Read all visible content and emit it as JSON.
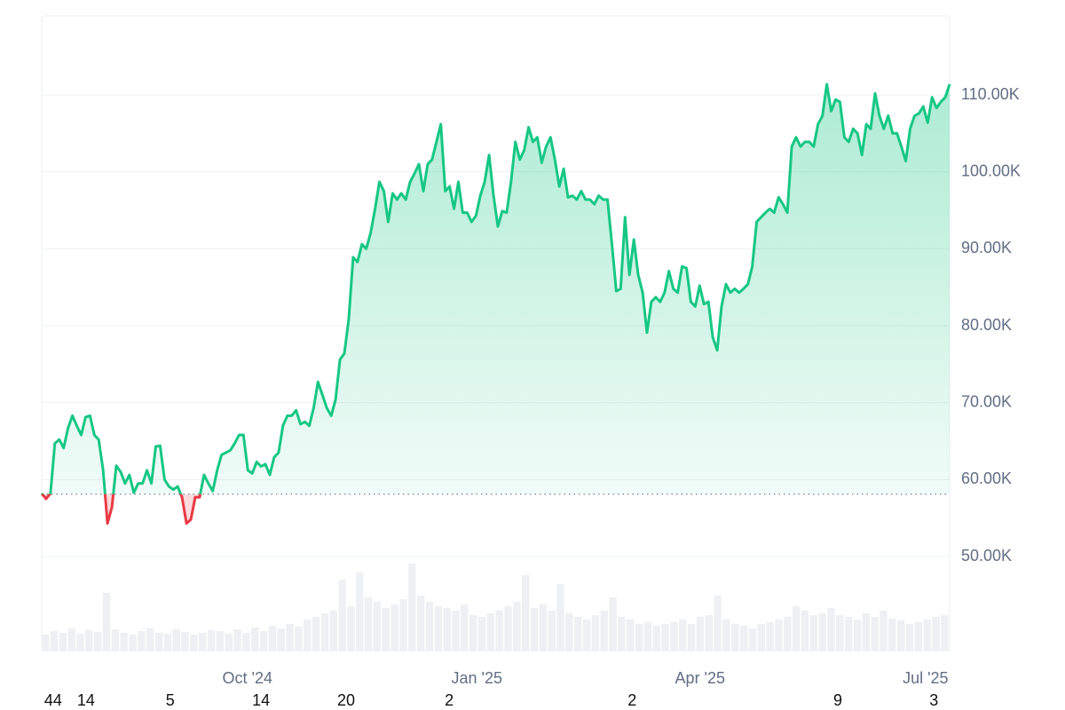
{
  "chart_data": {
    "type": "line",
    "series": [
      {
        "name": "price",
        "color": "#16c784",
        "below_color": "#ea3943",
        "values": [
          58200,
          57500,
          58200,
          64700,
          65200,
          64100,
          66700,
          68300,
          67000,
          65800,
          68100,
          68300,
          65800,
          65200,
          61200,
          54300,
          56400,
          61800,
          61000,
          59500,
          60600,
          58300,
          59500,
          59500,
          61200,
          59500,
          64300,
          64400,
          60000,
          59100,
          58700,
          59100,
          57700,
          54300,
          54800,
          57700,
          57700,
          60600,
          59500,
          58500,
          61200,
          63200,
          63500,
          63800,
          64700,
          65800,
          65800,
          61200,
          60800,
          62300,
          61700,
          62000,
          60600,
          62900,
          63500,
          67000,
          68300,
          68300,
          69000,
          67200,
          67500,
          67000,
          69300,
          72700,
          71000,
          69300,
          68300,
          70400,
          75600,
          76400,
          80800,
          88900,
          88300,
          90600,
          90000,
          92100,
          95200,
          98700,
          97500,
          93500,
          97200,
          96400,
          97200,
          96400,
          98700,
          99800,
          101000,
          97500,
          101000,
          101600,
          103900,
          106200,
          97500,
          98100,
          95200,
          98700,
          94700,
          94700,
          93500,
          94300,
          96900,
          98700,
          102200,
          97000,
          92900,
          94900,
          94700,
          98700,
          103900,
          101600,
          102800,
          105800,
          103900,
          104500,
          101200,
          103300,
          104500,
          101600,
          98100,
          100400,
          96700,
          96900,
          96400,
          97500,
          96400,
          96400,
          95800,
          96900,
          96400,
          96400,
          90600,
          84500,
          84800,
          94100,
          86600,
          91200,
          86600,
          84300,
          79100,
          83100,
          83700,
          83100,
          84300,
          87100,
          84800,
          84300,
          87700,
          87500,
          83100,
          82500,
          85200,
          82800,
          83100,
          78500,
          76800,
          82500,
          85400,
          84300,
          84800,
          84300,
          84800,
          85400,
          87700,
          93500,
          94100,
          94700,
          95200,
          94700,
          96700,
          95800,
          94700,
          103300,
          104500,
          103300,
          103900,
          103900,
          103300,
          106200,
          107300,
          111400,
          107900,
          109400,
          109100,
          104500,
          103900,
          105600,
          105000,
          102200,
          106200,
          105600,
          110200,
          107300,
          105600,
          107300,
          105000,
          105000,
          103300,
          101400,
          105600,
          107300,
          107600,
          108500,
          106400,
          109700,
          108300,
          109100,
          109700,
          111400
        ]
      }
    ],
    "baseline": 58100,
    "volume": {
      "color": "#eef0f3",
      "values": [
        18,
        22,
        20,
        25,
        19,
        23,
        21,
        65,
        24,
        20,
        18,
        22,
        25,
        20,
        19,
        24,
        21,
        18,
        20,
        23,
        22,
        19,
        24,
        20,
        26,
        22,
        28,
        25,
        30,
        27,
        35,
        38,
        42,
        45,
        80,
        50,
        88,
        60,
        55,
        48,
        52,
        58,
        98,
        62,
        55,
        50,
        48,
        45,
        52,
        40,
        38,
        42,
        45,
        50,
        55,
        85,
        48,
        52,
        45,
        75,
        42,
        38,
        35,
        40,
        45,
        60,
        38,
        35,
        30,
        32,
        28,
        30,
        32,
        35,
        30,
        38,
        40,
        62,
        35,
        30,
        28,
        25,
        30,
        32,
        35,
        38,
        50,
        45,
        40,
        42,
        48,
        40,
        38,
        35,
        42,
        38,
        45,
        36,
        34,
        30,
        32,
        35,
        38,
        40
      ],
      "lim": [
        0,
        100
      ]
    },
    "xlim": [
      0,
      207
    ],
    "xticks": [
      {
        "value": 46.9,
        "label": "Oct '24"
      },
      {
        "value": 99.2,
        "label": "Jan '25"
      },
      {
        "value": 150.1,
        "label": "Apr '25"
      },
      {
        "value": 201.5,
        "label": "Jul '25"
      }
    ],
    "xticks_minor": [
      {
        "value": 2.6,
        "label": "44"
      },
      {
        "value": 10.1,
        "label": "14"
      },
      {
        "value": 29.3,
        "label": "5"
      },
      {
        "value": 50.0,
        "label": "14"
      },
      {
        "value": 69.4,
        "label": "20"
      },
      {
        "value": 92.9,
        "label": "2"
      },
      {
        "value": 134.6,
        "label": "2"
      },
      {
        "value": 181.5,
        "label": "9"
      },
      {
        "value": 203.4,
        "label": "3"
      }
    ],
    "ylim": [
      37770,
      120270
    ],
    "yticks": [
      {
        "value": 50000,
        "label": "50.00K"
      },
      {
        "value": 60000,
        "label": "60.00K"
      },
      {
        "value": 70000,
        "label": "70.00K"
      },
      {
        "value": 80000,
        "label": "80.00K"
      },
      {
        "value": 90000,
        "label": "90.00K"
      },
      {
        "value": 100000,
        "label": "100.00K"
      },
      {
        "value": 110000,
        "label": "110.00K"
      }
    ],
    "grid": true
  }
}
